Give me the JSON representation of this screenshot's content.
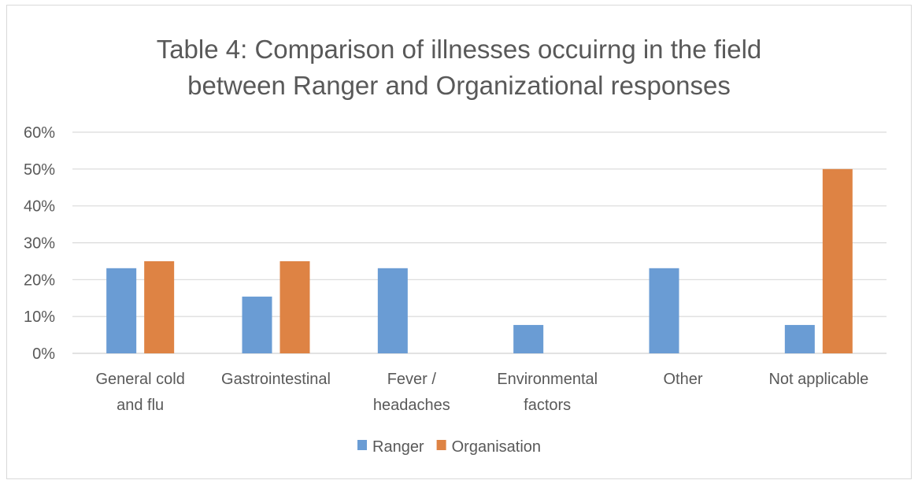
{
  "chart_data": {
    "type": "bar",
    "title_lines": [
      "Table 4: Comparison of illnesses occuirng in the field",
      "between Ranger and Organizational responses"
    ],
    "categories": [
      [
        "General cold",
        "and flu"
      ],
      [
        "Gastrointestinal"
      ],
      [
        "Fever /",
        "headaches"
      ],
      [
        "Environmental",
        "factors"
      ],
      [
        "Other"
      ],
      [
        "Not applicable"
      ]
    ],
    "series": [
      {
        "name": "Ranger",
        "color": "#6a9cd4",
        "values": [
          0.231,
          0.154,
          0.231,
          0.077,
          0.231,
          0.077
        ]
      },
      {
        "name": "Organisation",
        "color": "#de8344",
        "values": [
          0.25,
          0.25,
          0,
          0,
          0,
          0.5
        ]
      }
    ],
    "ylim": [
      0,
      0.6
    ],
    "yticks": [
      "0%",
      "10%",
      "20%",
      "30%",
      "40%",
      "50%",
      "60%"
    ],
    "grid": true,
    "legend": "bottom"
  }
}
